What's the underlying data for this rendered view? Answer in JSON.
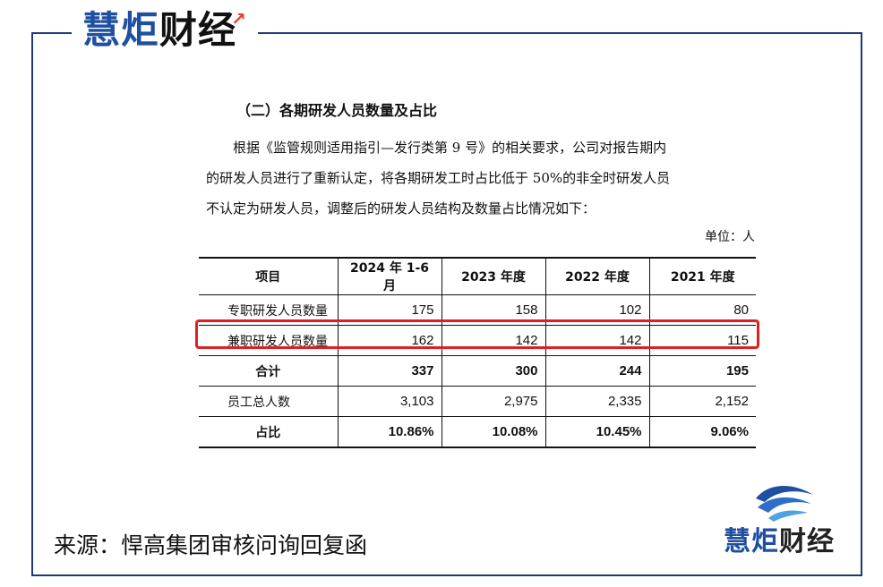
{
  "brand": {
    "part1": "慧炬",
    "part2": "财经",
    "spark_icon": "red-upward-stroke"
  },
  "document": {
    "section_title": "（二）各期研发人员数量及占比",
    "paragraph": [
      "根据《监管规则适用指引—发行类第 9 号》的相关要求，公司对报告期内",
      "的研发人员进行了重新认定，将各期研发工时占比低于 50%的非全时研发人员",
      "不认定为研发人员，调整后的研发人员结构及数量占比情况如下："
    ],
    "unit": "单位：人"
  },
  "table": {
    "headers": [
      "项目",
      "2024 年 1-6 月",
      "2023 年度",
      "2022 年度",
      "2021 年度"
    ],
    "rows": [
      {
        "label": "专职研发人员数量",
        "values": [
          "175",
          "158",
          "102",
          "80"
        ]
      },
      {
        "label": "兼职研发人员数量",
        "values": [
          "162",
          "142",
          "142",
          "115"
        ]
      },
      {
        "label": "合计",
        "values": [
          "337",
          "300",
          "244",
          "195"
        ]
      },
      {
        "label": "员工总人数",
        "values": [
          "3,103",
          "2,975",
          "2,335",
          "2,152"
        ]
      },
      {
        "label": "占比",
        "values": [
          "10.86%",
          "10.08%",
          "10.45%",
          "9.06%"
        ]
      }
    ]
  },
  "highlight_color": "#e02020",
  "frame_color": "#1b3a78",
  "brand_blue": "#1f4fa0",
  "source": "来源：悍高集团审核问询回复函"
}
